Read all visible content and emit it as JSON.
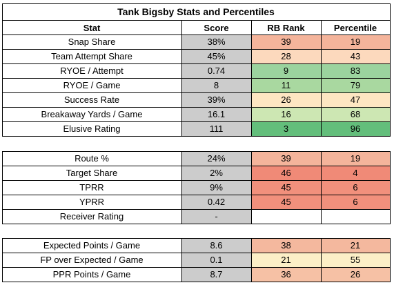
{
  "title": "Tank Bigsby Stats and Percentiles",
  "headers": {
    "stat": "Stat",
    "score": "Score",
    "rank": "RB Rank",
    "pct": "Percentile"
  },
  "colors": {
    "score_bg": "#cccccc",
    "blank_bg": "#ffffff",
    "border": "#000000"
  },
  "sections": [
    {
      "name": "usage",
      "rows": [
        {
          "stat": "Snap Share",
          "score": "38%",
          "rank": "39",
          "pct": "19",
          "rank_color": "#f4b49b",
          "pct_color": "#f4b49b"
        },
        {
          "stat": "Team Attempt Share",
          "score": "45%",
          "rank": "28",
          "pct": "43",
          "rank_color": "#fcd9bd",
          "pct_color": "#fcd9bd"
        },
        {
          "stat": "RYOE / Attempt",
          "score": "0.74",
          "rank": "9",
          "pct": "83",
          "rank_color": "#9bd39e",
          "pct_color": "#9bd39e"
        },
        {
          "stat": "RYOE / Game",
          "score": "8",
          "rank": "11",
          "pct": "79",
          "rank_color": "#a9d8a0",
          "pct_color": "#a9d8a0"
        },
        {
          "stat": "Success Rate",
          "score": "39%",
          "rank": "26",
          "pct": "47",
          "rank_color": "#fde6c2",
          "pct_color": "#fde6c2"
        },
        {
          "stat": "Breakaway Yards / Game",
          "score": "16.1",
          "rank": "16",
          "pct": "68",
          "rank_color": "#cde7b3",
          "pct_color": "#cde7b3"
        },
        {
          "stat": "Elusive Rating",
          "score": "111",
          "rank": "3",
          "pct": "96",
          "rank_color": "#63be7b",
          "pct_color": "#63be7b"
        }
      ]
    },
    {
      "name": "receiving",
      "rows": [
        {
          "stat": "Route %",
          "score": "24%",
          "rank": "39",
          "pct": "19",
          "rank_color": "#f4b49b",
          "pct_color": "#f4b49b"
        },
        {
          "stat": "Target Share",
          "score": "2%",
          "rank": "46",
          "pct": "4",
          "rank_color": "#f08a77",
          "pct_color": "#f08a77"
        },
        {
          "stat": "TPRR",
          "score": "9%",
          "rank": "45",
          "pct": "6",
          "rank_color": "#f1907c",
          "pct_color": "#f1907c"
        },
        {
          "stat": "YPRR",
          "score": "0.42",
          "rank": "45",
          "pct": "6",
          "rank_color": "#f1907c",
          "pct_color": "#f1907c"
        },
        {
          "stat": "Receiver Rating",
          "score": "-",
          "rank": "",
          "pct": "",
          "rank_color": "#ffffff",
          "pct_color": "#ffffff"
        }
      ]
    },
    {
      "name": "fantasy",
      "rows": [
        {
          "stat": "Expected Points / Game",
          "score": "8.6",
          "rank": "38",
          "pct": "21",
          "rank_color": "#f4b89e",
          "pct_color": "#f4b89e"
        },
        {
          "stat": "FP over Expected / Game",
          "score": "0.1",
          "rank": "21",
          "pct": "55",
          "rank_color": "#fcefc7",
          "pct_color": "#fcefc7"
        },
        {
          "stat": "PPR Points / Game",
          "score": "8.7",
          "rank": "36",
          "pct": "26",
          "rank_color": "#f6c1a5",
          "pct_color": "#f6c1a5"
        }
      ]
    }
  ]
}
